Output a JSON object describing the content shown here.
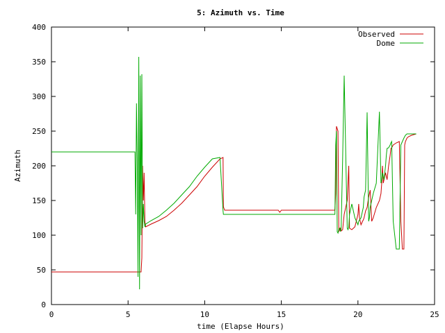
{
  "chart_data": {
    "type": "line",
    "title": "5: Azimuth vs. Time",
    "xlabel": "time (Elapse Hours)",
    "ylabel": "Azimuth",
    "xlim": [
      0,
      25
    ],
    "ylim": [
      0,
      400
    ],
    "xticks": [
      0,
      5,
      10,
      15,
      20,
      25
    ],
    "yticks": [
      0,
      50,
      100,
      150,
      200,
      250,
      300,
      350,
      400
    ],
    "grid": false,
    "legend_position": "top-right",
    "series": [
      {
        "name": "Observed",
        "color": "#cc0000",
        "x": [
          0,
          5.4,
          5.5,
          5.55,
          5.6,
          5.65,
          5.7,
          5.75,
          5.8,
          5.85,
          5.9,
          5.95,
          6.0,
          6.05,
          6.1,
          6.15,
          6.5,
          7,
          7.5,
          8,
          8.5,
          9,
          9.5,
          10,
          10.5,
          11,
          11.2,
          11.22,
          11.3,
          12,
          13,
          14,
          14.8,
          14.9,
          15,
          16,
          17,
          18,
          18.4,
          18.5,
          18.55,
          18.6,
          18.7,
          18.75,
          18.8,
          18.85,
          18.9,
          19.0,
          19.1,
          19.3,
          19.4,
          19.45,
          19.6,
          19.8,
          20.0,
          20.05,
          20.1,
          20.2,
          20.3,
          20.35,
          20.4,
          20.5,
          20.6,
          20.7,
          20.8,
          20.9,
          21.0,
          21.2,
          21.4,
          21.5,
          21.55,
          21.6,
          21.65,
          21.7,
          21.8,
          21.85,
          21.9,
          22.0,
          22.1,
          22.15,
          22.2,
          22.3,
          22.5,
          22.7,
          22.8,
          22.9,
          23.0,
          23.05,
          23.1,
          23.2,
          23.3,
          23.5,
          23.8
        ],
        "y": [
          47,
          47,
          47,
          47,
          47,
          47,
          47,
          47,
          47,
          47,
          67,
          200,
          150,
          190,
          120,
          112,
          116,
          121,
          127,
          136,
          146,
          158,
          170,
          185,
          198,
          210,
          212,
          141,
          136,
          136,
          136,
          136,
          136,
          133,
          136,
          136,
          136,
          136,
          136,
          136,
          160,
          257,
          250,
          105,
          108,
          110,
          106,
          108,
          130,
          150,
          200,
          110,
          108,
          112,
          130,
          145,
          125,
          115,
          120,
          122,
          125,
          135,
          140,
          155,
          165,
          120,
          125,
          140,
          150,
          160,
          175,
          200,
          175,
          180,
          190,
          185,
          180,
          200,
          215,
          225,
          226,
          230,
          233,
          235,
          120,
          80,
          80,
          230,
          235,
          240,
          242,
          244,
          246
        ]
      },
      {
        "name": "Dome",
        "color": "#00aa00",
        "x": [
          0,
          5.4,
          5.45,
          5.5,
          5.55,
          5.6,
          5.65,
          5.7,
          5.75,
          5.8,
          5.85,
          5.9,
          5.95,
          6.0,
          6.05,
          6.1,
          6.15,
          6.5,
          7,
          7.5,
          8,
          8.5,
          9,
          9.5,
          10,
          10.5,
          11,
          11.2,
          11.22,
          11.3,
          12,
          13,
          14,
          15,
          16,
          17,
          18,
          18.5,
          18.55,
          18.6,
          18.65,
          18.7,
          18.75,
          18.8,
          18.85,
          18.9,
          19.0,
          19.1,
          19.3,
          19.35,
          19.4,
          19.45,
          19.6,
          19.8,
          20.0,
          20.05,
          20.1,
          20.2,
          20.3,
          20.35,
          20.4,
          20.5,
          20.6,
          20.7,
          20.75,
          20.8,
          20.9,
          21.0,
          21.2,
          21.4,
          21.5,
          21.55,
          21.6,
          21.65,
          21.7,
          21.8,
          21.85,
          21.9,
          22.0,
          22.1,
          22.15,
          22.2,
          22.3,
          22.5,
          22.7,
          22.8,
          22.9,
          23.0,
          23.05,
          23.1,
          23.2,
          23.3,
          23.5,
          23.8
        ],
        "y": [
          220,
          220,
          220,
          130,
          290,
          210,
          40,
          357,
          22,
          330,
          100,
          332,
          110,
          145,
          120,
          112,
          116,
          121,
          127,
          136,
          146,
          158,
          170,
          185,
          198,
          210,
          212,
          135,
          130,
          130,
          130,
          130,
          130,
          130,
          130,
          130,
          130,
          130,
          230,
          250,
          105,
          103,
          108,
          110,
          106,
          108,
          210,
          330,
          110,
          108,
          112,
          130,
          145,
          125,
          115,
          120,
          122,
          125,
          135,
          140,
          155,
          165,
          277,
          120,
          125,
          140,
          150,
          160,
          175,
          278,
          175,
          180,
          190,
          185,
          180,
          200,
          215,
          225,
          226,
          230,
          233,
          235,
          120,
          80,
          80,
          230,
          235,
          240,
          242,
          244,
          246,
          246,
          246,
          246
        ]
      }
    ]
  }
}
